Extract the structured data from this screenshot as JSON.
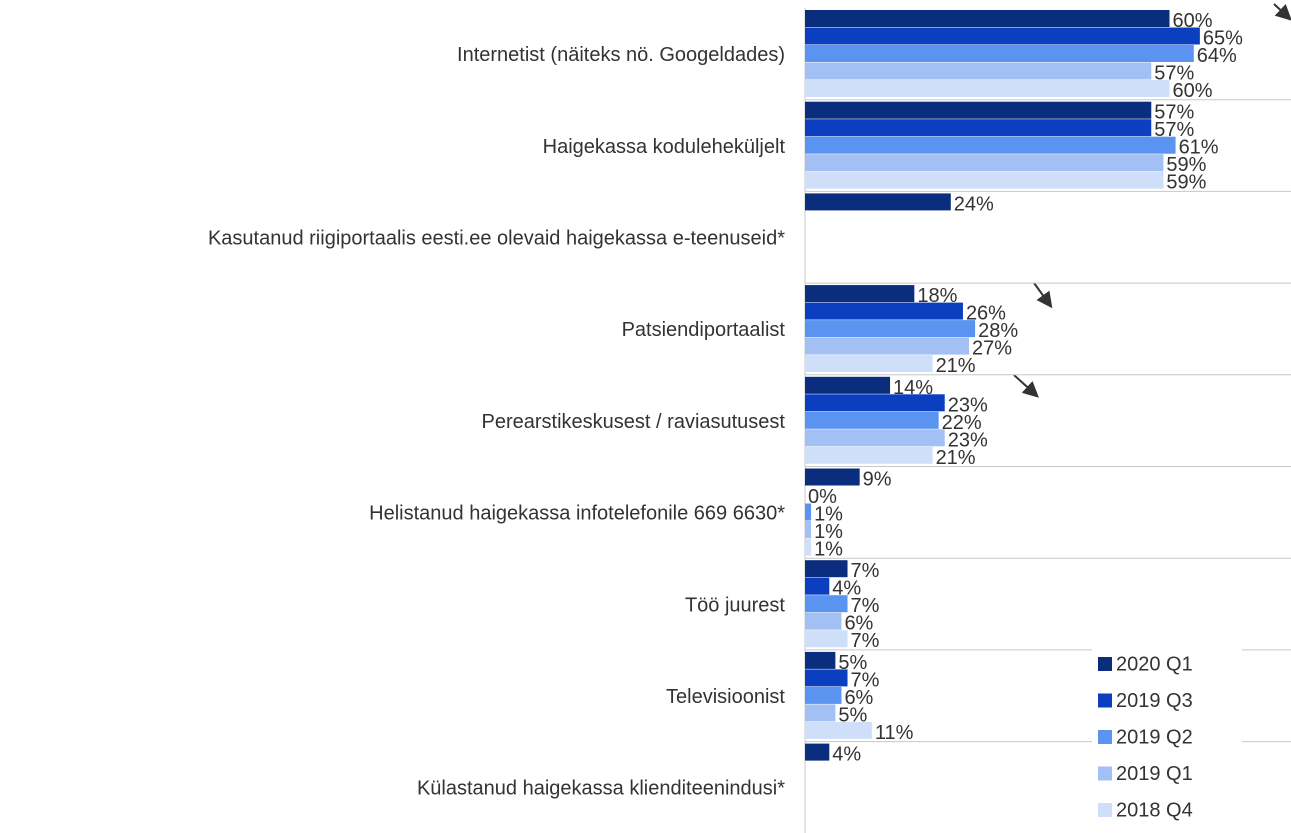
{
  "chart_data": {
    "type": "hbar",
    "categories": [
      "Internetist (näiteks nö. Googeldades)",
      "Haigekassa koduleheküljelt",
      "Kasutanud riigiportaalis eesti.ee olevaid haigekassa e-teenuseid*",
      "Patsiendiportaalist",
      "Perearstikeskusest / raviasutusest",
      "Helistanud haigekassa infotelefonile 669 6630*",
      "Töö juurest",
      "Televisioonist",
      "Külastanud haigekassa klienditeenindusi*"
    ],
    "series": [
      {
        "name": "2020 Q1",
        "color": "#0a2d7e",
        "values": [
          60,
          57,
          24,
          18,
          14,
          9,
          7,
          5,
          4
        ],
        "value_labels": [
          "60%",
          "57%",
          "24%",
          "18%",
          "14%",
          "9%",
          "7%",
          "5%",
          "4%"
        ]
      },
      {
        "name": "2019 Q3",
        "color": "#0b3fc0",
        "values": [
          65,
          57,
          null,
          26,
          23,
          0,
          4,
          7,
          null
        ],
        "value_labels": [
          "65%",
          "57%",
          null,
          "26%",
          "23%",
          "0%",
          "4%",
          "7%",
          null
        ]
      },
      {
        "name": "2019 Q2",
        "color": "#5b93f0",
        "values": [
          64,
          61,
          null,
          28,
          22,
          1,
          7,
          6,
          null
        ],
        "value_labels": [
          "64%",
          "61%",
          null,
          "28%",
          "22%",
          "1%",
          "7%",
          "6%",
          null
        ]
      },
      {
        "name": "2019 Q1",
        "color": "#a3c0f5",
        "values": [
          57,
          59,
          null,
          27,
          23,
          1,
          6,
          5,
          null
        ],
        "value_labels": [
          "57%",
          "59%",
          null,
          "27%",
          "23%",
          "1%",
          "6%",
          "5%",
          null
        ]
      },
      {
        "name": "2018 Q4",
        "color": "#cfdffa",
        "values": [
          60,
          59,
          null,
          21,
          21,
          1,
          7,
          11,
          null
        ],
        "value_labels": [
          "60%",
          "59%",
          null,
          "21%",
          "21%",
          "1%",
          "7%",
          "11%",
          null
        ]
      }
    ],
    "xlim": [
      0,
      80
    ],
    "legend": "bottom-right"
  }
}
